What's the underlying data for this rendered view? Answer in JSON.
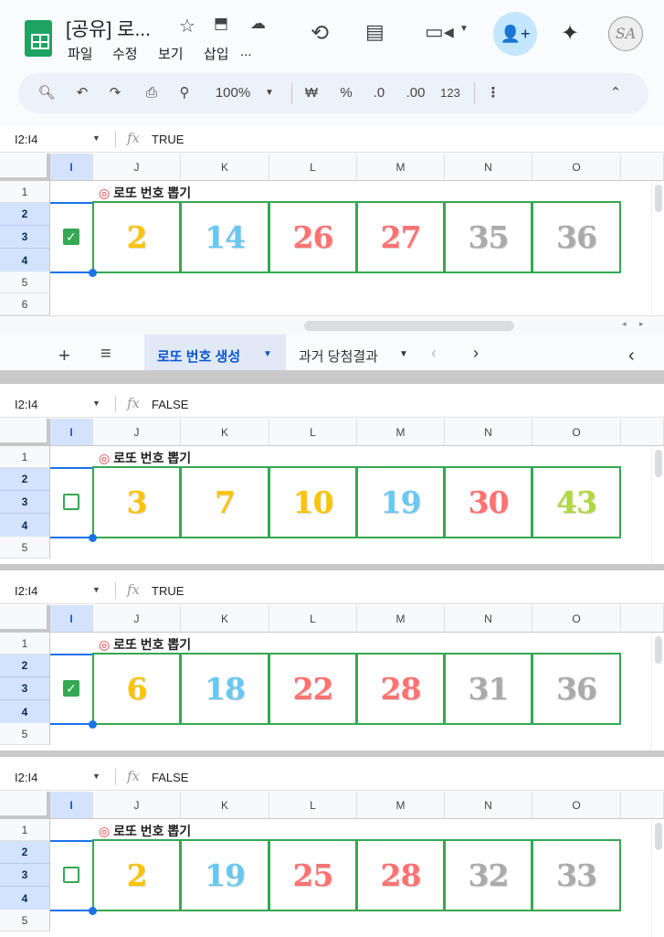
{
  "header": {
    "title": "[공유] 로...",
    "menu": [
      "파일",
      "수정",
      "보기",
      "삽입",
      "..."
    ],
    "icons": [
      "star-icon",
      "move-to-folder-icon",
      "cloud-saved-icon",
      "history-icon",
      "comments-icon",
      "meet-icon",
      "share-icon",
      "gemini-icon",
      "avatar"
    ],
    "avatar_initials": "SA"
  },
  "toolbar": {
    "zoom": "100%",
    "currency": "₩",
    "percent": "%",
    "dec_decrease": ".0",
    "dec_increase": ".00",
    "format": "123"
  },
  "sheet": {
    "columns": [
      "I",
      "J",
      "K",
      "L",
      "M",
      "N",
      "O"
    ],
    "title": "로또 번호 뽑기",
    "cell_ref": "I2:I4",
    "tabs": [
      {
        "label": "로또 번호 생성",
        "active": true
      },
      {
        "label": "과거 당첨결과",
        "active": false
      }
    ]
  },
  "colors": {
    "1-10": "#fbc400",
    "11-20": "#69c8f2",
    "21-30": "#ff7272",
    "31-40": "#aaaaaa",
    "41-45": "#b0d840",
    "border": "#34a853",
    "selection": "#1a73e8"
  },
  "panels": [
    {
      "formula": "TRUE",
      "checked": true,
      "numbers": [
        2,
        14,
        26,
        27,
        35,
        36
      ]
    },
    {
      "formula": "FALSE",
      "checked": false,
      "numbers": [
        3,
        7,
        10,
        19,
        30,
        43
      ]
    },
    {
      "formula": "TRUE",
      "checked": true,
      "numbers": [
        6,
        18,
        22,
        28,
        31,
        36
      ]
    },
    {
      "formula": "FALSE",
      "checked": false,
      "numbers": [
        2,
        19,
        25,
        28,
        32,
        33
      ]
    }
  ]
}
